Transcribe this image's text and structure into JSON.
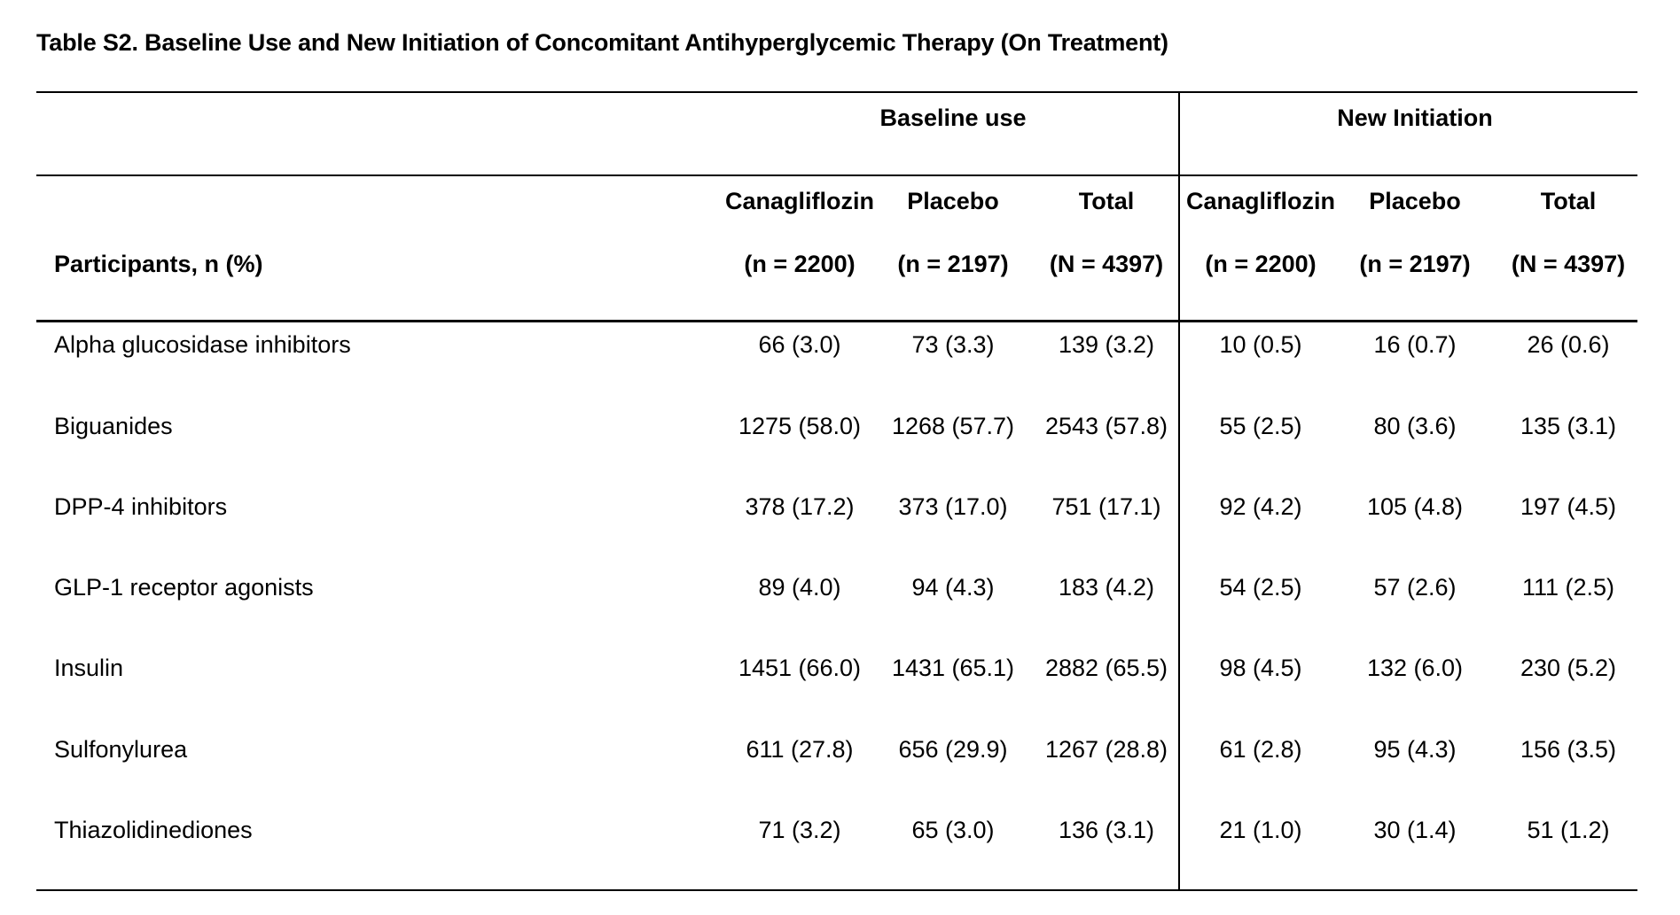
{
  "title": "Table S2. Baseline Use and New Initiation of Concomitant Antihyperglycemic Therapy (On Treatment)",
  "groups": [
    {
      "label": "Baseline use"
    },
    {
      "label": "New Initiation"
    }
  ],
  "row_header": "Participants, n (%)",
  "columns": [
    {
      "name": "Canagliflozin",
      "n": "(n = 2200)"
    },
    {
      "name": "Placebo",
      "n": "(n = 2197)"
    },
    {
      "name": "Total",
      "n": "(N = 4397)"
    },
    {
      "name": "Canagliflozin",
      "n": "(n = 2200)"
    },
    {
      "name": "Placebo",
      "n": "(n = 2197)"
    },
    {
      "name": "Total",
      "n": "(N = 4397)"
    }
  ],
  "rows": [
    {
      "label": "Alpha glucosidase inhibitors",
      "values": [
        "66 (3.0)",
        "73 (3.3)",
        "139 (3.2)",
        "10 (0.5)",
        "16 (0.7)",
        "26 (0.6)"
      ]
    },
    {
      "label": "Biguanides",
      "values": [
        "1275 (58.0)",
        "1268 (57.7)",
        "2543 (57.8)",
        "55 (2.5)",
        "80 (3.6)",
        "135 (3.1)"
      ]
    },
    {
      "label": "DPP-4 inhibitors",
      "values": [
        "378 (17.2)",
        "373 (17.0)",
        "751 (17.1)",
        "92 (4.2)",
        "105 (4.8)",
        "197 (4.5)"
      ]
    },
    {
      "label": "GLP-1 receptor agonists",
      "values": [
        "89 (4.0)",
        "94 (4.3)",
        "183 (4.2)",
        "54 (2.5)",
        "57 (2.6)",
        "111 (2.5)"
      ]
    },
    {
      "label": "Insulin",
      "values": [
        "1451 (66.0)",
        "1431 (65.1)",
        "2882 (65.5)",
        "98 (4.5)",
        "132 (6.0)",
        "230 (5.2)"
      ]
    },
    {
      "label": "Sulfonylurea",
      "values": [
        "611 (27.8)",
        "656 (29.9)",
        "1267 (28.8)",
        "61 (2.8)",
        "95 (4.3)",
        "156 (3.5)"
      ]
    },
    {
      "label": "Thiazolidinediones",
      "values": [
        "71 (3.2)",
        "65 (3.0)",
        "136 (3.1)",
        "21 (1.0)",
        "30 (1.4)",
        "51 (1.2)"
      ]
    }
  ]
}
